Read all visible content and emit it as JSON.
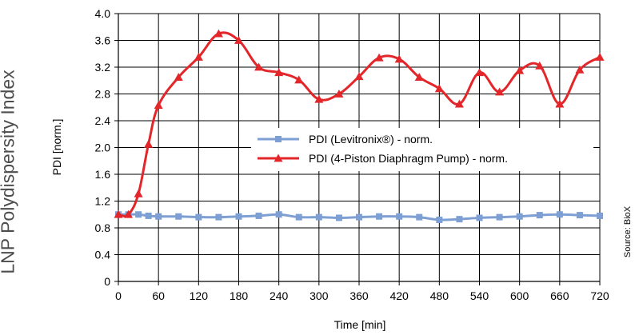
{
  "chart_data": {
    "type": "line",
    "title": "LNP Polydispersity Index",
    "xlabel": "Time [min]",
    "ylabel": "PDI [norm.]",
    "source": "Source: BioX",
    "xlim": [
      0,
      720
    ],
    "ylim": [
      0,
      4.0
    ],
    "xticks": [
      "0",
      "60",
      "120",
      "180",
      "240",
      "300",
      "360",
      "420",
      "480",
      "540",
      "600",
      "660",
      "720"
    ],
    "yticks": [
      "0",
      "0.4",
      "0.8",
      "1.2",
      "1.6",
      "2.0",
      "2.4",
      "2.8",
      "3.2",
      "3.6",
      "4.0"
    ],
    "grid": true,
    "legend_position": "center",
    "series": [
      {
        "name": "PDI (Levitronix®) - norm.",
        "color": "#7d9fd3",
        "marker": "square",
        "x": [
          0,
          15,
          30,
          45,
          60,
          90,
          120,
          150,
          180,
          210,
          240,
          270,
          300,
          330,
          360,
          390,
          420,
          450,
          480,
          510,
          540,
          570,
          600,
          630,
          660,
          690,
          720
        ],
        "y": [
          1.0,
          1.0,
          1.0,
          0.98,
          0.97,
          0.97,
          0.96,
          0.96,
          0.97,
          0.98,
          1.0,
          0.96,
          0.96,
          0.95,
          0.96,
          0.97,
          0.97,
          0.96,
          0.92,
          0.93,
          0.95,
          0.96,
          0.97,
          0.99,
          1.0,
          0.99,
          0.98
        ]
      },
      {
        "name": "PDI (4-Piston Diaphragm Pump) - norm.",
        "color": "#e3262a",
        "marker": "triangle",
        "x": [
          0,
          15,
          30,
          45,
          60,
          90,
          120,
          150,
          180,
          210,
          240,
          270,
          300,
          330,
          360,
          390,
          420,
          450,
          480,
          510,
          540,
          570,
          600,
          630,
          660,
          690,
          720
        ],
        "y": [
          1.0,
          1.0,
          1.31,
          2.05,
          2.63,
          3.05,
          3.35,
          3.7,
          3.6,
          3.2,
          3.12,
          3.01,
          2.72,
          2.8,
          3.06,
          3.34,
          3.32,
          3.05,
          2.88,
          2.65,
          3.12,
          2.83,
          3.15,
          3.22,
          2.65,
          3.16,
          3.35
        ]
      }
    ]
  }
}
